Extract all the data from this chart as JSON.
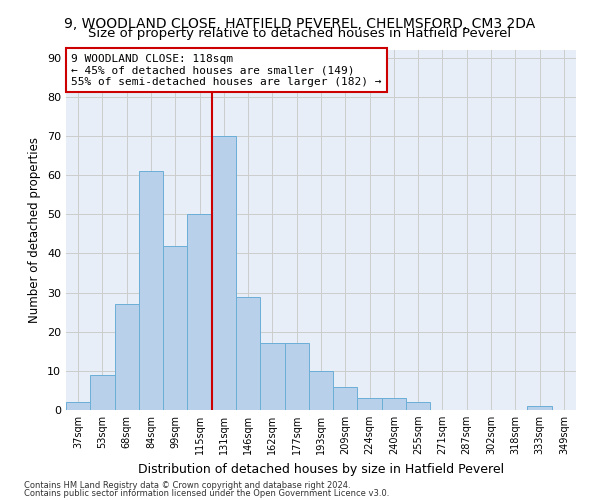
{
  "title": "9, WOODLAND CLOSE, HATFIELD PEVEREL, CHELMSFORD, CM3 2DA",
  "subtitle": "Size of property relative to detached houses in Hatfield Peverel",
  "xlabel": "Distribution of detached houses by size in Hatfield Peverel",
  "ylabel": "Number of detached properties",
  "categories": [
    "37sqm",
    "53sqm",
    "68sqm",
    "84sqm",
    "99sqm",
    "115sqm",
    "131sqm",
    "146sqm",
    "162sqm",
    "177sqm",
    "193sqm",
    "209sqm",
    "224sqm",
    "240sqm",
    "255sqm",
    "271sqm",
    "287sqm",
    "302sqm",
    "318sqm",
    "333sqm",
    "349sqm"
  ],
  "values": [
    2,
    9,
    27,
    61,
    42,
    50,
    70,
    29,
    17,
    17,
    10,
    6,
    3,
    3,
    2,
    0,
    0,
    0,
    0,
    1,
    0
  ],
  "bar_color": "#b8d0ea",
  "bar_edge_color": "#6aaed6",
  "vline_x_index": 5.5,
  "vline_color": "#cc0000",
  "annotation_text": "9 WOODLAND CLOSE: 118sqm\n← 45% of detached houses are smaller (149)\n55% of semi-detached houses are larger (182) →",
  "annotation_box_color": "#ffffff",
  "annotation_box_edge": "#cc0000",
  "annotation_fontsize": 8.0,
  "ylim": [
    0,
    92
  ],
  "yticks": [
    0,
    10,
    20,
    30,
    40,
    50,
    60,
    70,
    80,
    90
  ],
  "grid_color": "#cccccc",
  "bg_color": "#e8eef8",
  "title_fontsize": 10,
  "subtitle_fontsize": 9.5,
  "xlabel_fontsize": 9,
  "ylabel_fontsize": 8.5,
  "footer1": "Contains HM Land Registry data © Crown copyright and database right 2024.",
  "footer2": "Contains public sector information licensed under the Open Government Licence v3.0."
}
